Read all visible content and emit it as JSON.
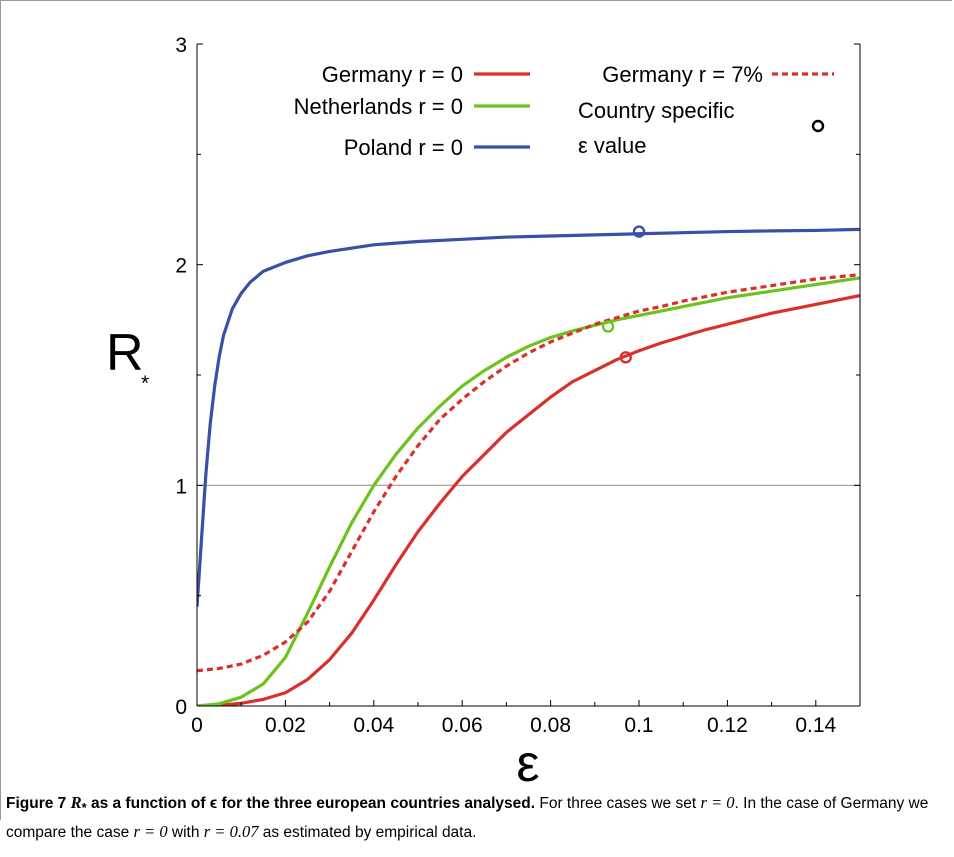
{
  "caption": {
    "label": "Figure 7",
    "symbol": "R",
    "subscript": "*",
    "title_rest": " as a function of ϵ for the three european countries analysed.",
    "body_part1": " For three cases we set ",
    "r0_text": "r = 0",
    "body_part2": ". In the case of Germany we compare the case ",
    "r0_text_2": "r = 0",
    "body_part3": " with ",
    "r007_text": "r = 0.07",
    "body_part4": " as estimated by empirical data."
  },
  "chart_data": {
    "type": "line",
    "xlabel": "ε",
    "ylabel": "R",
    "ylabel_subscript": "*",
    "xlim": [
      0,
      0.15
    ],
    "ylim": [
      0,
      3
    ],
    "x_ticks": [
      0,
      0.02,
      0.04,
      0.06,
      0.08,
      0.1,
      0.12,
      0.14
    ],
    "x_tick_labels": [
      "0",
      "0.02",
      "0.04",
      "0.06",
      "0.08",
      "0.1",
      "0.12",
      "0.14"
    ],
    "y_ticks": [
      0,
      1,
      2,
      3
    ],
    "y_tick_labels": [
      "0",
      "1",
      "2",
      "3"
    ],
    "reference_line": {
      "y": 1,
      "color": "#999999"
    },
    "grid": false,
    "legend_position": "top",
    "series": [
      {
        "name": "Germany r = 0",
        "color": "#d9302a",
        "dash": "solid",
        "x": [
          0,
          0.005,
          0.01,
          0.015,
          0.02,
          0.025,
          0.03,
          0.035,
          0.04,
          0.045,
          0.05,
          0.055,
          0.06,
          0.065,
          0.07,
          0.075,
          0.08,
          0.085,
          0.09,
          0.095,
          0.1,
          0.105,
          0.11,
          0.115,
          0.12,
          0.125,
          0.13,
          0.135,
          0.14,
          0.145,
          0.15
        ],
        "y": [
          0,
          0.003,
          0.012,
          0.03,
          0.06,
          0.12,
          0.21,
          0.33,
          0.48,
          0.64,
          0.79,
          0.92,
          1.04,
          1.14,
          1.24,
          1.32,
          1.4,
          1.47,
          1.52,
          1.57,
          1.61,
          1.645,
          1.675,
          1.705,
          1.73,
          1.755,
          1.78,
          1.8,
          1.82,
          1.84,
          1.86
        ]
      },
      {
        "name": "Netherlands r = 0",
        "color": "#6cc21e",
        "dash": "solid",
        "x": [
          0,
          0.005,
          0.01,
          0.015,
          0.02,
          0.025,
          0.03,
          0.035,
          0.04,
          0.045,
          0.05,
          0.055,
          0.06,
          0.065,
          0.07,
          0.075,
          0.08,
          0.085,
          0.09,
          0.095,
          0.1,
          0.105,
          0.11,
          0.115,
          0.12,
          0.125,
          0.13,
          0.135,
          0.14,
          0.145,
          0.15
        ],
        "y": [
          0,
          0.01,
          0.04,
          0.1,
          0.22,
          0.42,
          0.63,
          0.83,
          1.0,
          1.14,
          1.26,
          1.36,
          1.45,
          1.52,
          1.58,
          1.63,
          1.67,
          1.7,
          1.725,
          1.75,
          1.77,
          1.79,
          1.81,
          1.83,
          1.85,
          1.865,
          1.88,
          1.895,
          1.91,
          1.925,
          1.94
        ]
      },
      {
        "name": "Poland r = 0",
        "color": "#3a4fa8",
        "dash": "solid",
        "x": [
          0,
          0.001,
          0.002,
          0.003,
          0.004,
          0.005,
          0.006,
          0.008,
          0.01,
          0.012,
          0.015,
          0.02,
          0.025,
          0.03,
          0.04,
          0.05,
          0.06,
          0.07,
          0.08,
          0.09,
          0.1,
          0.11,
          0.12,
          0.13,
          0.14,
          0.15
        ],
        "y": [
          0.45,
          0.75,
          1.05,
          1.28,
          1.45,
          1.58,
          1.68,
          1.8,
          1.87,
          1.92,
          1.97,
          2.01,
          2.04,
          2.06,
          2.09,
          2.105,
          2.115,
          2.125,
          2.13,
          2.135,
          2.14,
          2.145,
          2.15,
          2.153,
          2.155,
          2.16
        ]
      },
      {
        "name": "Germany r = 7%",
        "color": "#d9302a",
        "dash": "dotted",
        "x": [
          0,
          0.005,
          0.01,
          0.015,
          0.02,
          0.025,
          0.03,
          0.035,
          0.04,
          0.045,
          0.05,
          0.055,
          0.06,
          0.065,
          0.07,
          0.075,
          0.08,
          0.085,
          0.09,
          0.095,
          0.1,
          0.105,
          0.11,
          0.115,
          0.12,
          0.125,
          0.13,
          0.135,
          0.14,
          0.145,
          0.15
        ],
        "y": [
          0.16,
          0.17,
          0.19,
          0.23,
          0.29,
          0.38,
          0.52,
          0.7,
          0.88,
          1.04,
          1.18,
          1.3,
          1.39,
          1.47,
          1.54,
          1.6,
          1.65,
          1.69,
          1.73,
          1.76,
          1.79,
          1.81,
          1.835,
          1.855,
          1.875,
          1.89,
          1.905,
          1.92,
          1.935,
          1.945,
          1.955
        ]
      }
    ],
    "points": {
      "name": "Country specific ε value",
      "marker": "circle",
      "items": [
        {
          "x": 0.097,
          "y": 1.58,
          "color": "#d9302a"
        },
        {
          "x": 0.093,
          "y": 1.72,
          "color": "#6cc21e"
        },
        {
          "x": 0.1,
          "y": 2.15,
          "color": "#3a4fa8"
        }
      ]
    },
    "legend_points_line1": "Country specific",
    "legend_points_line2": "ε value"
  }
}
